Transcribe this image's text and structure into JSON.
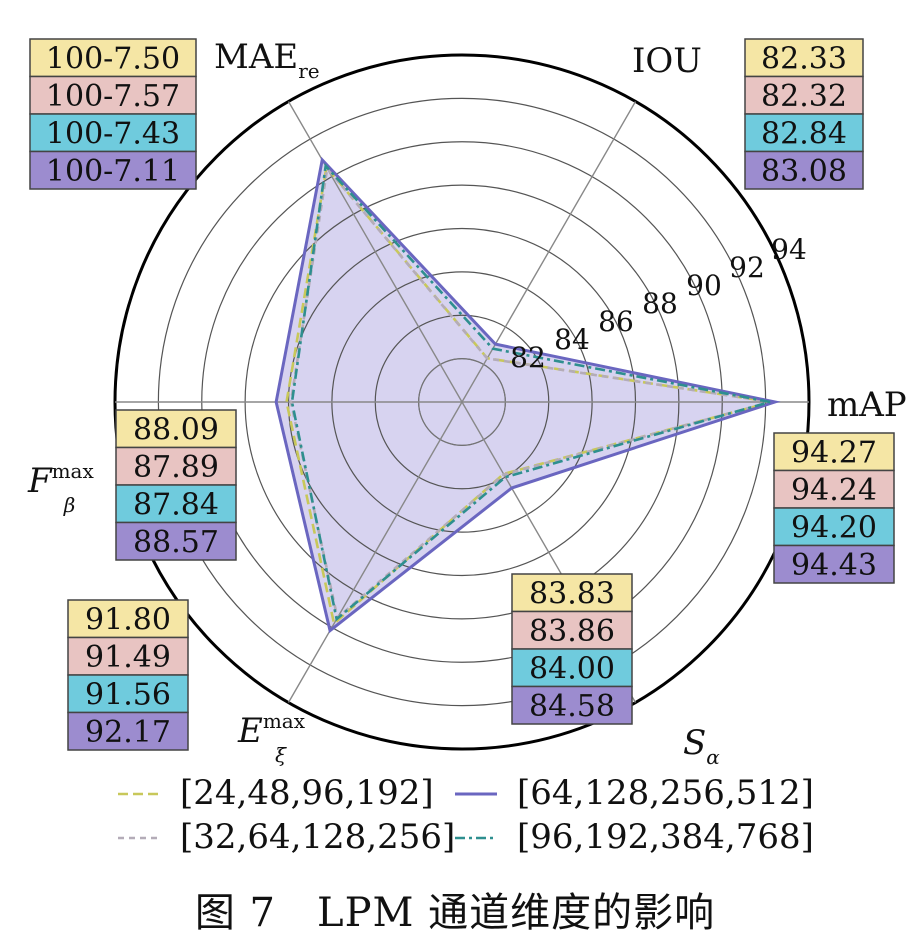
{
  "chart_data": {
    "type": "radar",
    "title": "",
    "axes": [
      {
        "key": "mAP",
        "label": "mAP"
      },
      {
        "key": "IOU",
        "label": "IOU"
      },
      {
        "key": "MAE",
        "label": "MAE",
        "label_sub": "re"
      },
      {
        "key": "F",
        "label": "F",
        "label_sup": "max",
        "label_sub": "β"
      },
      {
        "key": "E",
        "label": "E",
        "label_sup": "max",
        "label_sub": "ξ"
      },
      {
        "key": "S",
        "label": "S",
        "label_sub": "α"
      }
    ],
    "radial_ticks": [
      82,
      84,
      86,
      88,
      90,
      92,
      94
    ],
    "radial_range": [
      80,
      96
    ],
    "series": [
      {
        "name": "[24,48,96,192]",
        "color": "#c8c85a",
        "dash": "long",
        "values": {
          "mAP": 94.27,
          "IOU": 82.33,
          "MAE": 92.5,
          "F": 88.09,
          "E": 91.8,
          "S": 83.83
        },
        "labels": {
          "mAP": "94.27",
          "IOU": "82.33",
          "MAE": "100-7.50",
          "F": "88.09",
          "E": "91.80",
          "S": "83.83"
        },
        "box_color": "#f5e6a5"
      },
      {
        "name": "[32,64,128,256]",
        "color": "#b4acb8",
        "dash": "short",
        "values": {
          "mAP": 94.24,
          "IOU": 82.32,
          "MAE": 92.43,
          "F": 87.89,
          "E": 91.49,
          "S": 83.86
        },
        "labels": {
          "mAP": "94.24",
          "IOU": "82.32",
          "MAE": "100-7.57",
          "F": "87.89",
          "E": "91.49",
          "S": "83.86"
        },
        "box_color": "#e8c4c2"
      },
      {
        "name": "[64,128,256,512]",
        "color": "#6a66c0",
        "dash": "solid",
        "values": {
          "mAP": 94.43,
          "IOU": 83.08,
          "MAE": 92.89,
          "F": 88.57,
          "E": 92.17,
          "S": 84.58
        },
        "labels": {
          "mAP": "94.43",
          "IOU": "83.08",
          "MAE": "100-7.11",
          "F": "88.57",
          "E": "92.17",
          "S": "84.58"
        },
        "box_color": "#9c8ccf"
      },
      {
        "name": "[96,192,384,768]",
        "color": "#2e8f8f",
        "dash": "dashdot",
        "values": {
          "mAP": 94.2,
          "IOU": 82.84,
          "MAE": 92.57,
          "F": 87.84,
          "E": 91.56,
          "S": 84.0
        },
        "labels": {
          "mAP": "94.20",
          "IOU": "82.84",
          "MAE": "100-7.43",
          "F": "87.84",
          "E": "91.56",
          "S": "84.00"
        },
        "box_color": "#6fcbdd"
      }
    ],
    "box_order": [
      0,
      1,
      3,
      2
    ],
    "legend_order": [
      0,
      2,
      1,
      3
    ],
    "fill_color": "#cdc8ec"
  },
  "caption": "图 7　LPM 通道维度的影响"
}
